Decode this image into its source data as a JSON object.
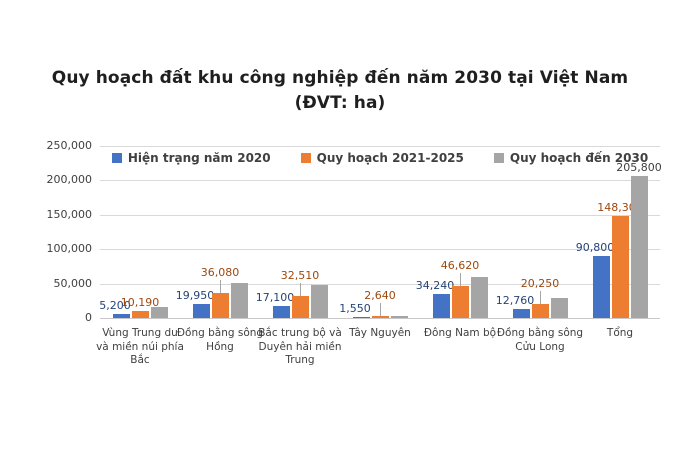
{
  "page": {
    "background": "#ffffff"
  },
  "title": {
    "line1": "Quy hoạch đất khu công nghiệp đến năm 2030 tại Việt Nam",
    "line2": "(ĐVT: ha)"
  },
  "chart_data": {
    "type": "bar",
    "title": "Quy hoạch đất khu công nghiệp đến năm 2030 tại Việt Nam",
    "subtitle": "(ĐVT: ha)",
    "unit": "ha",
    "categories": [
      "Vùng Trung du và miền núi phía Bắc",
      "Đồng bằng sông Hồng",
      "Bắc trung bộ và Duyên hải miền Trung",
      "Tây Nguyên",
      "Đông Nam bộ",
      "Đồng bằng sông Cửu Long",
      "Tổng"
    ],
    "series": [
      {
        "name": "Hiện trạng năm 2020",
        "color": "#4472C4",
        "label_color": "#264478",
        "values": [
          5200,
          19950,
          17100,
          1550,
          34240,
          12760,
          90800
        ],
        "show_labels": [
          true,
          true,
          true,
          true,
          true,
          true,
          true
        ],
        "leader": [
          false,
          false,
          false,
          false,
          false,
          false,
          false
        ]
      },
      {
        "name": "Quy hoạch 2021-2025",
        "color": "#ED7D31",
        "label_color": "#9E480E",
        "values": [
          10190,
          36080,
          32510,
          2640,
          46620,
          20250,
          148300
        ],
        "show_labels": [
          true,
          true,
          true,
          true,
          true,
          true,
          true
        ],
        "leader": [
          false,
          true,
          true,
          true,
          true,
          true,
          false
        ]
      },
      {
        "name": "Quy hoạch đến 2030",
        "color": "#A5A5A5",
        "label_color": "#404040",
        "values": [
          15500,
          50900,
          48000,
          3100,
          59300,
          29000,
          205800
        ],
        "values_estimated": [
          true,
          true,
          true,
          true,
          true,
          true,
          false
        ],
        "show_labels": [
          false,
          false,
          false,
          false,
          false,
          false,
          true
        ],
        "leader": [
          false,
          false,
          false,
          false,
          false,
          false,
          false
        ]
      }
    ],
    "ylim": [
      0,
      250000
    ],
    "yticks": [
      {
        "value": 0,
        "label": "0"
      },
      {
        "value": 50000,
        "label": "50,000"
      },
      {
        "value": 100000,
        "label": "100,000"
      },
      {
        "value": 150000,
        "label": "150,000"
      },
      {
        "value": 200000,
        "label": "200,000"
      },
      {
        "value": 250000,
        "label": "250,000"
      }
    ],
    "grid": true,
    "legend_position": "top-inside",
    "colors": {
      "grid": "#d9d9d9",
      "axis_line": "#c8c8c8",
      "axis_text": "#404040",
      "legend_text": "#404040",
      "title_text": "#1f1f1f",
      "leader_line": "#a6a6a6"
    }
  }
}
